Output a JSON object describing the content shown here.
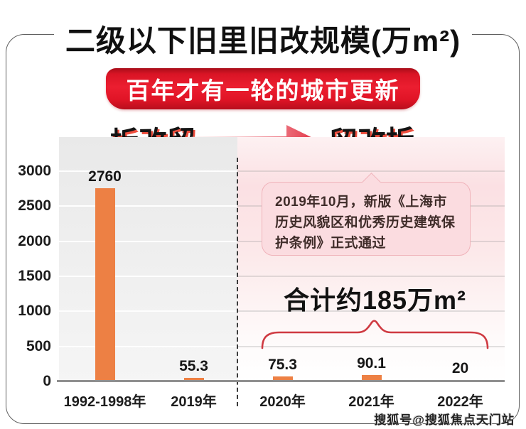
{
  "title": "二级以下旧里旧改规模(万m²)",
  "banner": "百年才有一轮的城市更新",
  "era_left": "拆改留",
  "era_right": "留改拆",
  "callout": {
    "text": "2019年10月，新版《上海市历史风貌区和优秀历史建筑保护条例》正式通过"
  },
  "total_label": "合计约185万m²",
  "watermark": "搜狐号@搜狐焦点天门站",
  "colors": {
    "bar": "#ED8044",
    "ribbon_red": "#e01527",
    "brace_red": "#cf3a42",
    "bubble_pink": "#fbdce0"
  },
  "chart_data": {
    "type": "bar",
    "title": "二级以下旧里旧改规模(万m²)",
    "categories": [
      "1992-1998年",
      "2019年",
      "2020年",
      "2021年",
      "2022年"
    ],
    "values": [
      2760,
      55.3,
      75.3,
      90.1,
      20
    ],
    "value_labels": [
      "2760",
      "55.3",
      "75.3",
      "90.1",
      "20"
    ],
    "xlabel": "",
    "ylabel": "万m²",
    "ylim": [
      0,
      3000
    ],
    "yticks": [
      0,
      500,
      1000,
      1500,
      2000,
      2500,
      3000
    ],
    "grid": true,
    "legend": false,
    "annotations": [
      "合计约185万m²",
      "2019年10月，新版《上海市历史风貌区和优秀历史建筑保护条例》正式通过"
    ]
  }
}
